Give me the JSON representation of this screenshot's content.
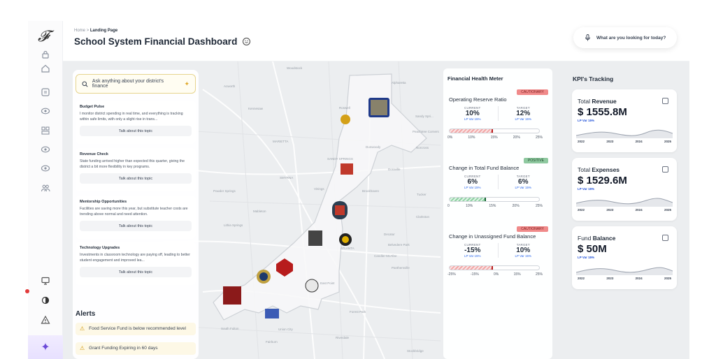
{
  "header": {
    "crumb_home": "Home",
    "crumb_sep": ">",
    "crumb_current": "Landing Page",
    "title": "School System Financial Dashboard",
    "search_text": "What are you looking for today?"
  },
  "sidebar": {
    "logo": "𝓕",
    "icons": [
      "lock-icon",
      "home-icon",
      "card-icon",
      "eye-icon",
      "layout-icon",
      "eye-icon-2",
      "eye-icon-3",
      "people-icon",
      "monitor-icon",
      "contrast-icon",
      "alert-icon"
    ],
    "assistant_glyph": "✦"
  },
  "map": {
    "labels": [
      "Woodstock",
      "Alpharetta",
      "Acworth",
      "Kennesaw",
      "Roswell",
      "Sandy Spri...",
      "MARIETTA",
      "Peachtree Corners",
      "Norcross",
      "Dunwoody",
      "SANDY SPRINGS",
      "Doraville",
      "SMYRNA",
      "Vinings",
      "Brookhaven",
      "Tucker",
      "Powder Springs",
      "Mableton",
      "Decatur",
      "Clarkston",
      "Lithia Springs",
      "Belvedere Park",
      "ATLANTA",
      "Candler-McAfee",
      "Panthersville",
      "East Point",
      "Forest Park",
      "South Fulton",
      "Union City",
      "Fairburn",
      "Riverdale",
      "Stockbridge"
    ]
  },
  "assistant": {
    "ask_placeholder": "Ask anything about your district's finance",
    "topics": [
      {
        "title": "Budget Pulse",
        "desc": "I monitor district spending in real time, and everything is tracking within safe limits, with only a slight rise in trans...",
        "button": "Talk about this topic"
      },
      {
        "title": "Revenue Check",
        "desc": "State funding arrived higher than expected this quarter, giving the district a bit more flexibility in key programs.",
        "button": "Talk about this topic"
      },
      {
        "title": "Mentorship Opportunities",
        "desc": "Facilities are saving more this year, but substitute teacher costs are trending above normal and need attention.",
        "button": "Talk about this topic"
      },
      {
        "title": "Technology Upgrades",
        "desc": "Investments in classroom technology are paying off, leading to better student engagement and improved lea...",
        "button": "Talk about this topic"
      }
    ]
  },
  "alerts": {
    "title": "Alerts",
    "items": [
      "Food Service Fund is below recommended level",
      "Grant Funding Expiring in 60 days"
    ]
  },
  "health_meter": {
    "title": "Financial Health Meter",
    "current_label": "CURRENT",
    "target_label": "TARGET",
    "meters": [
      {
        "status": "CAUTIONARY",
        "name": "Operating Reserve Ratio",
        "current": "10%",
        "current_sub": "LP Var 15%",
        "target": "12%",
        "target_sub": "LP Var 15%",
        "ticks": [
          "0%",
          "10%",
          "15%",
          "20%",
          "25%"
        ],
        "fill": 0.48,
        "color": "red"
      },
      {
        "status": "POSITIVE",
        "name": "Change in Total Fund Balance",
        "current": "6%",
        "current_sub": "LP Var 15%",
        "target": "6%",
        "target_sub": "LP Var 15%",
        "ticks": [
          "0",
          "10%",
          "15%",
          "20%",
          "25%"
        ],
        "fill": 0.4,
        "color": "green"
      },
      {
        "status": "CAUTIONARY",
        "name": "Change in Unassigned Fund Balance",
        "current": "-15%",
        "current_sub": "LP Var 15%",
        "target": "10%",
        "target_sub": "LP Var 15%",
        "ticks": [
          "-25%",
          "-15%",
          "0%",
          "15%",
          "25%"
        ],
        "fill": 0.48,
        "color": "red"
      }
    ]
  },
  "kpi": {
    "title": "KPI's Tracking",
    "cards": [
      {
        "label_prefix": "Total ",
        "label_bold": "Revenue",
        "value": "$ 1555.8M",
        "sub": "LP Var 15%",
        "years": [
          "2022",
          "2023",
          "2024",
          "2025"
        ]
      },
      {
        "label_prefix": "Total ",
        "label_bold": "Expenses",
        "value": "$ 1529.6M",
        "sub": "LP Var 15%",
        "years": [
          "2022",
          "2023",
          "2024",
          "2025"
        ]
      },
      {
        "label_prefix": "Fund ",
        "label_bold": "Balance",
        "value": "$ 50M",
        "sub": "LP Var 15%",
        "years": [
          "2022",
          "2023",
          "2024",
          "2025"
        ]
      }
    ]
  },
  "colors": {
    "accent": "#6c4bd8",
    "caution": "#f08a8a",
    "positive": "#8fc9a0",
    "alert_bg": "#fdf8e6"
  }
}
